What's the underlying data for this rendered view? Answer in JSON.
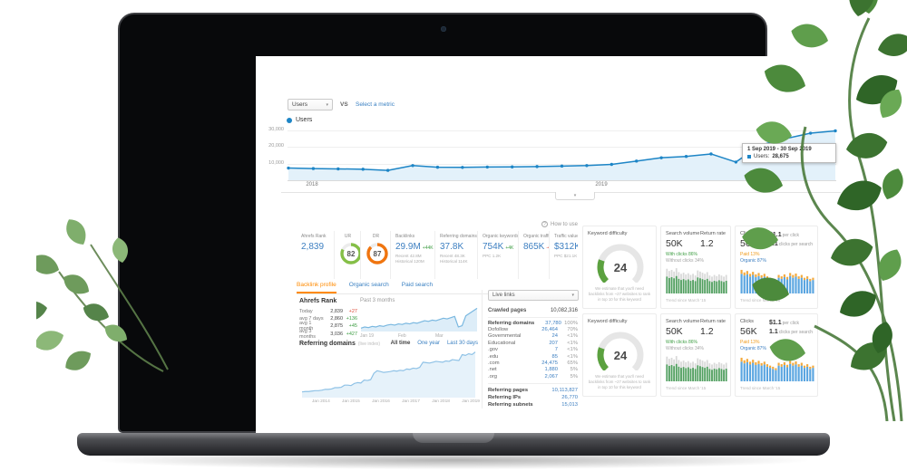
{
  "ga": {
    "metric_select": "Users",
    "vs": "VS",
    "select_metric": "Select a metric",
    "legend": "Users",
    "tooltip_title": "1 Sep 2019 - 30 Sep 2019",
    "tooltip_label": "Users:",
    "tooltip_value": "28,675"
  },
  "howto": "How to use",
  "stats": {
    "rank": {
      "label": "Ahrefs Rank",
      "value": "2,839"
    },
    "ur": {
      "label": "UR"
    },
    "dr": {
      "label": "DR"
    },
    "backlinks": {
      "label": "Backlinks",
      "value": "29.9M",
      "delta": "+44K",
      "sub1": "Recent 42.8M",
      "sub2": "Historical 120M"
    },
    "refdomains": {
      "label": "Referring domains",
      "value": "37.8K",
      "sub1": "Recent 48.3K",
      "sub2": "Historical 114K"
    },
    "keywords": {
      "label": "Organic keywords",
      "value": "754K",
      "delta": "+4K",
      "sub1": "PPC 1.2K"
    },
    "traffic": {
      "label": "Organic traffic",
      "value": "865K",
      "delta": "-4K"
    },
    "value": {
      "label": "Traffic value",
      "value": "$312K",
      "sub1": "PPC $21.1K"
    }
  },
  "tabs": [
    {
      "label": "Backlink profile",
      "active": true
    },
    {
      "label": "Organic search",
      "active": false
    },
    {
      "label": "Paid search",
      "active": false
    }
  ],
  "rank_panel": {
    "title": "Ahrefs Rank",
    "period": "Past 3 months",
    "rows": [
      {
        "label": "Today",
        "value": "2,839",
        "delta": "+27",
        "dir": "down"
      },
      {
        "label": "avg 7 days",
        "value": "2,860",
        "delta": "+136",
        "dir": "up"
      },
      {
        "label": "avg 1 month",
        "value": "2,875",
        "delta": "+45",
        "dir": "up"
      },
      {
        "label": "avg 3 months",
        "value": "3,036",
        "delta": "+427",
        "dir": "up"
      }
    ],
    "x_ticks": [
      "Jan 19",
      "Feb",
      "Mar"
    ]
  },
  "refdom_panel": {
    "title": "Referring domains",
    "subtitle": "(live index)",
    "filters": [
      {
        "label": "All time",
        "active": true
      },
      {
        "label": "One year",
        "active": false
      },
      {
        "label": "Last 30 days",
        "active": false
      }
    ],
    "x_ticks": [
      "Jan 2014",
      "Jan 2015",
      "Jan 2016",
      "Jan 2017",
      "Jan 2018",
      "Jan 2019"
    ]
  },
  "middle": {
    "select": "Live links",
    "crawled_label": "Crawled pages",
    "crawled_value": "10,082,316",
    "table": [
      {
        "label": "Referring domains",
        "value": "37,780",
        "pct": "100%",
        "bold": true
      },
      {
        "label": "Dofollow",
        "value": "26,464",
        "pct": "70%"
      },
      {
        "label": "Governmental",
        "value": "24",
        "pct": "<1%"
      },
      {
        "label": "Educational",
        "value": "207",
        "pct": "<1%"
      },
      {
        "label": ".gov",
        "value": "7",
        "pct": "<1%"
      },
      {
        "label": ".edu",
        "value": "85",
        "pct": "<1%"
      },
      {
        "label": ".com",
        "value": "24,475",
        "pct": "65%"
      },
      {
        "label": ".net",
        "value": "1,880",
        "pct": "5%"
      },
      {
        "label": ".org",
        "value": "2,067",
        "pct": "5%"
      }
    ],
    "totals": [
      {
        "label": "Referring pages",
        "value": "10,113,827"
      },
      {
        "label": "Referring IPs",
        "value": "26,770"
      },
      {
        "label": "Referring subnets",
        "value": "15,013"
      }
    ]
  },
  "kcards": {
    "kd": {
      "title": "Keyword difficulty",
      "note": "We estimate that you'll need backlinks from ~27 websites to rank in top 10 for this keyword"
    },
    "sv": {
      "title": "Search volume",
      "value": "50K",
      "rr_title": "Return rate",
      "rr_value": "1.2",
      "line1": "With clicks 86%",
      "line2": "Without clicks 34%",
      "footnote": "Trend since March '15"
    },
    "ck": {
      "title": "Clicks",
      "value": "56K",
      "cpc_value": "$1.1",
      "cpc_label": "per click",
      "cps_value": "1.1",
      "cps_label": "clicks per search",
      "line1": "Paid 13%",
      "line2": "Organic 87%",
      "footnote": "Trend since March '15"
    }
  },
  "chart_data": [
    {
      "id": "ga_users",
      "type": "area",
      "title": "Users",
      "x_ticks": [
        "2018",
        "2019"
      ],
      "y_ticks": [
        "30,000",
        "20,000",
        "10,000"
      ],
      "ylim": [
        0,
        30000
      ],
      "values": [
        6800,
        6500,
        6300,
        6100,
        5400,
        8300,
        7300,
        7200,
        7400,
        7500,
        7700,
        8000,
        8300,
        9000,
        11000,
        13000,
        13800,
        15300,
        10400,
        20700,
        24500,
        27800,
        29200
      ],
      "color": "#1d85c6",
      "fill": "#e3f1fa",
      "dots": true
    },
    {
      "id": "rank_trend",
      "type": "line",
      "values": [
        38,
        40,
        39,
        41,
        40,
        42,
        41,
        43,
        44,
        43,
        45,
        44,
        46,
        45,
        47,
        46,
        48,
        50,
        49,
        51,
        50,
        52,
        54,
        53,
        55,
        57,
        40,
        42,
        58,
        62,
        66,
        70
      ],
      "color": "#7ab8e0",
      "fill": "#ddedf8",
      "sw": 1.2
    },
    {
      "id": "refdom_trend",
      "type": "area",
      "values": [
        2,
        3,
        3,
        4,
        5,
        5,
        6,
        8,
        8,
        9,
        12,
        12,
        13,
        18,
        18,
        17,
        22,
        24,
        23,
        30,
        29,
        31,
        46,
        52,
        50,
        48,
        49,
        50,
        52,
        51,
        53,
        52,
        56,
        55,
        58,
        57,
        60,
        72,
        71,
        70,
        72,
        74,
        73,
        72,
        75,
        74,
        78,
        77,
        76,
        90,
        88,
        92,
        90,
        96
      ],
      "color": "#8fc2e6",
      "fill": "#e6f2fa",
      "sw": 1.2
    },
    {
      "id": "sv_trend",
      "type": "bar",
      "mode": "overlay",
      "series": [
        {
          "name": "total searches",
          "color": "#d9d9d9",
          "values": [
            88,
            80,
            84,
            78,
            90,
            76,
            70,
            74,
            68,
            72,
            66,
            70,
            64,
            82,
            78,
            74,
            70,
            76,
            64,
            60,
            66,
            62,
            68,
            64,
            60,
            66
          ]
        },
        {
          "name": "with clicks",
          "color": "#4f9f5e",
          "values": [
            60,
            55,
            58,
            54,
            62,
            52,
            48,
            51,
            47,
            50,
            45,
            48,
            44,
            57,
            54,
            51,
            48,
            52,
            44,
            41,
            45,
            43,
            47,
            44,
            41,
            45
          ]
        }
      ]
    },
    {
      "id": "ck_trend",
      "type": "bar",
      "mode": "stack",
      "series": [
        {
          "name": "organic clicks",
          "color": "#5aa5e0",
          "values": [
            70,
            64,
            68,
            60,
            66,
            58,
            62,
            56,
            60,
            52,
            48,
            44,
            40,
            56,
            52,
            58,
            50,
            62,
            56,
            60,
            52,
            56,
            48,
            52,
            44,
            48
          ]
        },
        {
          "name": "paid clicks",
          "color": "#f3a93c",
          "values": [
            14,
            11,
            12,
            10,
            11,
            10,
            11,
            9,
            10,
            9,
            8,
            8,
            7,
            10,
            9,
            10,
            9,
            11,
            10,
            11,
            9,
            10,
            8,
            9,
            8,
            8
          ]
        }
      ]
    },
    {
      "id": "ur_donut",
      "type": "donut",
      "value": 82,
      "color": "#85bf47"
    },
    {
      "id": "dr_donut",
      "type": "donut",
      "value": 87,
      "color": "#f0750f"
    },
    {
      "id": "kd_gauge",
      "type": "gauge",
      "value": 24,
      "max": 100,
      "color": "#5ba13f"
    }
  ]
}
